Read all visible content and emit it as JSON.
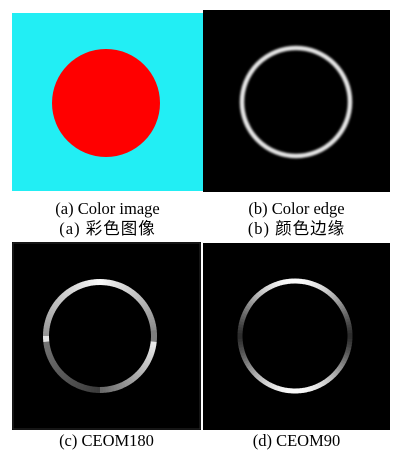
{
  "figure": {
    "panels": [
      {
        "id": "a",
        "caption_en": "(a) Color image",
        "caption_zh": "(a)  彩色图像",
        "background_color": "#22eef4",
        "circle_color": "#ff0000"
      },
      {
        "id": "b",
        "caption_en": "(b) Color edge",
        "caption_zh": "(b)  颜色边缘",
        "background_color": "#000000",
        "ring_color": "#e6e6e6"
      },
      {
        "id": "c",
        "caption_en": "(c) CEOM180",
        "background_color": "#000000"
      },
      {
        "id": "d",
        "caption_en": "(d) CEOM90",
        "background_color": "#000000"
      }
    ]
  }
}
